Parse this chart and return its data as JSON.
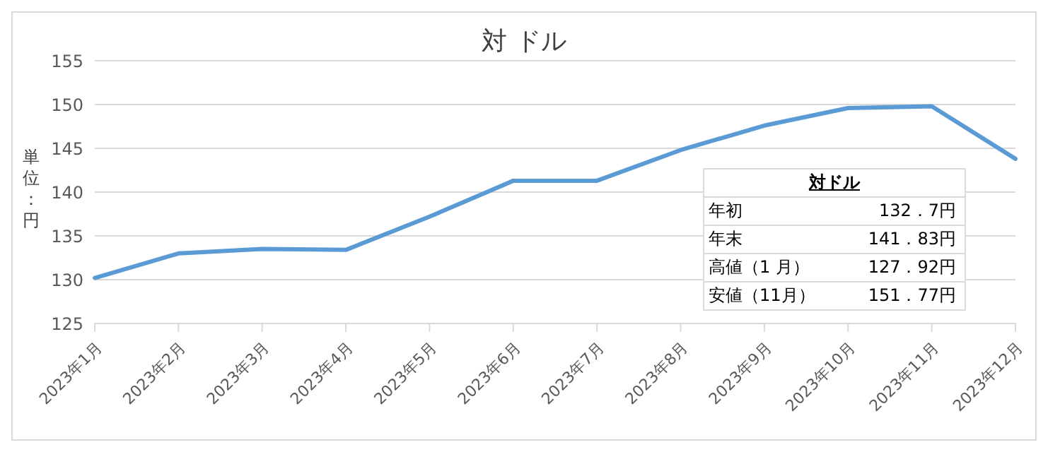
{
  "chart_data": {
    "type": "line",
    "title": "対 ドル",
    "ylabel": "単位：円",
    "categories": [
      "2023年1月",
      "2023年2月",
      "2023年3月",
      "2023年4月",
      "2023年5月",
      "2023年6月",
      "2023年7月",
      "2023年8月",
      "2023年9月",
      "2023年10月",
      "2023年11月",
      "2023年12月"
    ],
    "series": [
      {
        "color": "#5b9bd5",
        "values": [
          130.2,
          133.0,
          133.5,
          133.4,
          137.2,
          141.3,
          141.3,
          144.8,
          147.6,
          149.6,
          149.8,
          143.8
        ]
      }
    ],
    "ylim": [
      125,
      155
    ],
    "yticks": [
      125,
      130,
      135,
      140,
      145,
      150,
      155
    ],
    "grid": "y",
    "marker": "none",
    "line_style": "solid",
    "annotations": [
      "対ドル",
      "年初",
      "132．7円",
      "年末",
      "141．83円",
      "高値（1 月）",
      "127．92円",
      "安値（11月）",
      "151．77円"
    ]
  }
}
